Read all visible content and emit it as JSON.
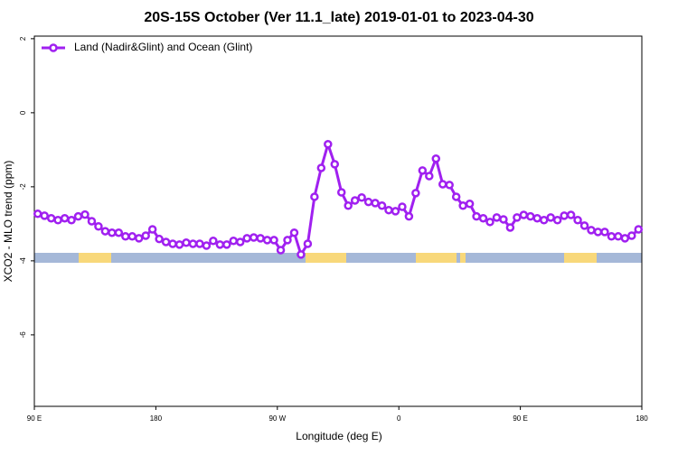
{
  "chart_data": {
    "type": "line",
    "title": "20S-15S October (Ver 11.1_late)   2019-01-01 to 2023-04-30",
    "x_label": "Longitude (deg E)",
    "y_label": "XCO2 - MLO trend (ppm)",
    "x": [
      92.5,
      97.5,
      102.5,
      107.5,
      112.5,
      117.5,
      122.5,
      127.5,
      132.5,
      137.5,
      142.5,
      147.5,
      152.5,
      157.5,
      162.5,
      167.5,
      172.5,
      177.5,
      182.5,
      187.5,
      192.5,
      197.5,
      202.5,
      207.5,
      212.5,
      217.5,
      222.5,
      227.5,
      232.5,
      237.5,
      242.5,
      247.5,
      252.5,
      257.5,
      262.5,
      267.5,
      272.5,
      277.5,
      282.5,
      287.5,
      292.5,
      297.5,
      302.5,
      307.5,
      312.5,
      317.5,
      322.5,
      327.5,
      332.5,
      337.5,
      342.5,
      347.5,
      352.5,
      357.5,
      362.5,
      367.5,
      372.5,
      377.5,
      382.5,
      387.5,
      392.5,
      397.5,
      402.5,
      407.5,
      412.5,
      417.5,
      422.5,
      427.5,
      432.5,
      437.5,
      442.5,
      447.5,
      452.5,
      457.5,
      462.5,
      467.5,
      472.5,
      477.5,
      482.5,
      487.5,
      492.5,
      497.5,
      502.5,
      507.5,
      512.5,
      517.5,
      522.5,
      527.5,
      532.5,
      537.5
    ],
    "series": [
      {
        "name": "Land (Nadir&Glint) and Ocean (Glint)",
        "color": "#a020f0",
        "values": [
          -2.73,
          -2.78,
          -2.85,
          -2.9,
          -2.85,
          -2.9,
          -2.8,
          -2.75,
          -2.93,
          -3.07,
          -3.2,
          -3.24,
          -3.24,
          -3.34,
          -3.34,
          -3.39,
          -3.32,
          -3.15,
          -3.41,
          -3.49,
          -3.54,
          -3.56,
          -3.51,
          -3.54,
          -3.54,
          -3.59,
          -3.46,
          -3.56,
          -3.56,
          -3.46,
          -3.49,
          -3.39,
          -3.37,
          -3.39,
          -3.44,
          -3.44,
          -3.71,
          -3.44,
          -3.24,
          -3.83,
          -3.54,
          -2.27,
          -1.49,
          -0.85,
          -1.39,
          -2.15,
          -2.51,
          -2.37,
          -2.29,
          -2.41,
          -2.44,
          -2.51,
          -2.63,
          -2.66,
          -2.54,
          -2.8,
          -2.17,
          -1.56,
          -1.71,
          -1.24,
          -1.93,
          -1.95,
          -2.27,
          -2.51,
          -2.46,
          -2.8,
          -2.85,
          -2.95,
          -2.83,
          -2.88,
          -3.1,
          -2.83,
          -2.76,
          -2.8,
          -2.85,
          -2.9,
          -2.83,
          -2.9,
          -2.78,
          -2.76,
          -2.9,
          -3.05,
          -3.17,
          -3.22,
          -3.22,
          -3.34,
          -3.34,
          -3.39,
          -3.32,
          -3.15
        ]
      }
    ],
    "xlim": [
      90,
      540
    ],
    "xticks": [
      {
        "value": 90,
        "label": "90 E"
      },
      180,
      {
        "value": 270,
        "label": "90 W"
      },
      {
        "value": 360,
        "label": "0"
      },
      {
        "value": 450,
        "label": "90 E"
      },
      {
        "value": 540,
        "label": "180"
      }
    ],
    "ylim": [
      -7.93,
      2.07
    ],
    "yticks": [
      2,
      0,
      -2,
      -4,
      -6
    ],
    "legend": "top-left"
  }
}
